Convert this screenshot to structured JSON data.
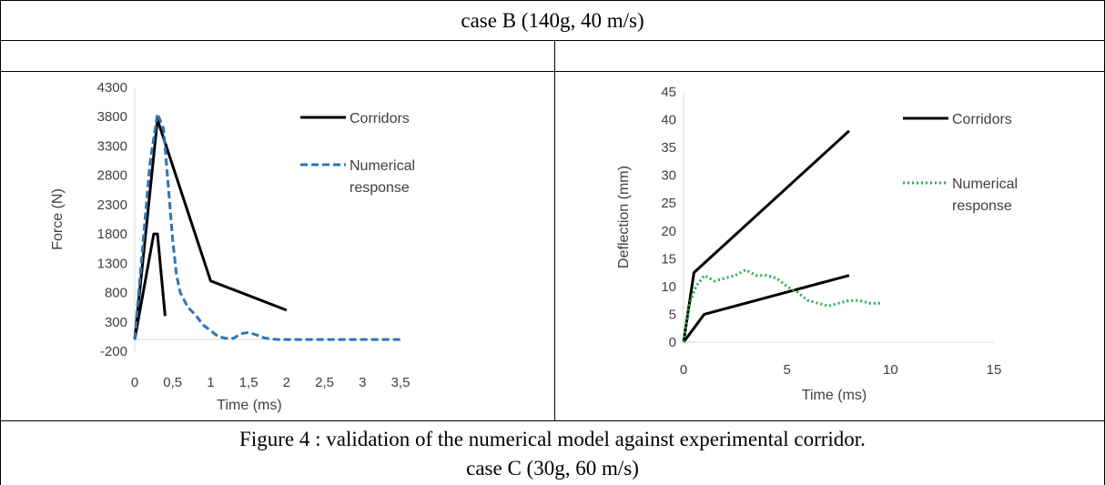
{
  "header": {
    "title": "case B (140g, 40 m/s)"
  },
  "caption": {
    "line1": "Figure 4 : validation of the numerical model  against experimental corridor.",
    "line2": "case C (30g, 60 m/s)"
  },
  "colors": {
    "corridor": "#000000",
    "numerical_left": "#2e75b6",
    "numerical_right": "#21b04b",
    "text": "#404040"
  },
  "chart_data": [
    {
      "type": "line",
      "xlabel": "Time (ms)",
      "ylabel": "Force (N)",
      "xlim": [
        0,
        3.5
      ],
      "ylim": [
        -200,
        4300
      ],
      "x_ticks": [
        "0",
        "0,5",
        "1",
        "1,5",
        "2",
        "2,5",
        "3",
        "3,5"
      ],
      "x_tick_values": [
        0,
        0.5,
        1,
        1.5,
        2,
        2.5,
        3,
        3.5
      ],
      "y_ticks": [
        "4300",
        "3800",
        "3300",
        "2800",
        "2300",
        "1800",
        "1300",
        "800",
        "300",
        "-200"
      ],
      "y_tick_values": [
        4300,
        3800,
        3300,
        2800,
        2300,
        1800,
        1300,
        800,
        300,
        -200
      ],
      "grid": false,
      "legend_position": "top-right",
      "legend": [
        {
          "lines": [
            "Corridors"
          ],
          "style": "solid"
        },
        {
          "lines": [
            "Numerical",
            "response"
          ],
          "style": "dashed"
        }
      ],
      "series": [
        {
          "style": "solid",
          "color": "#000000",
          "x": [
            0,
            0.25,
            0.3,
            0.4
          ],
          "y": [
            0,
            1800,
            1800,
            400
          ]
        },
        {
          "style": "solid",
          "color": "#000000",
          "x": [
            0,
            0.3,
            1,
            2
          ],
          "y": [
            0,
            3750,
            1000,
            500
          ]
        },
        {
          "style": "dashed",
          "color": "#2e75b6",
          "x": [
            0,
            0.1,
            0.2,
            0.3,
            0.38,
            0.45,
            0.5,
            0.55,
            0.6,
            0.7,
            0.8,
            0.9,
            1.0,
            1.1,
            1.2,
            1.3,
            1.4,
            1.5,
            1.6,
            1.7,
            1.8,
            1.9,
            2.0,
            2.5,
            3.0,
            3.5
          ],
          "y": [
            0,
            1500,
            3000,
            3850,
            3600,
            2500,
            1700,
            1100,
            800,
            550,
            420,
            250,
            150,
            50,
            20,
            20,
            100,
            120,
            80,
            30,
            10,
            0,
            0,
            0,
            0,
            0
          ]
        }
      ]
    },
    {
      "type": "line",
      "xlabel": "Time (ms)",
      "ylabel": "Deflection (mm)",
      "xlim": [
        0,
        15
      ],
      "ylim": [
        0,
        45
      ],
      "x_ticks": [
        "0",
        "5",
        "10",
        "15"
      ],
      "x_tick_values": [
        0,
        5,
        10,
        15
      ],
      "y_ticks": [
        "45",
        "40",
        "35",
        "30",
        "25",
        "20",
        "15",
        "10",
        "5",
        "0"
      ],
      "y_tick_values": [
        45,
        40,
        35,
        30,
        25,
        20,
        15,
        10,
        5,
        0
      ],
      "grid": false,
      "legend_position": "top-right",
      "legend": [
        {
          "lines": [
            "Corridors"
          ],
          "style": "solid"
        },
        {
          "lines": [
            "Numerical",
            "response"
          ],
          "style": "dotted"
        }
      ],
      "series": [
        {
          "style": "solid",
          "color": "#000000",
          "x": [
            0,
            0.5,
            8
          ],
          "y": [
            0,
            12.5,
            38
          ]
        },
        {
          "style": "solid",
          "color": "#000000",
          "x": [
            0,
            1,
            8
          ],
          "y": [
            0,
            5,
            12
          ]
        },
        {
          "style": "dotted",
          "color": "#21b04b",
          "x": [
            0,
            0.3,
            0.6,
            1.0,
            1.5,
            2.0,
            2.5,
            3.0,
            3.5,
            4.0,
            4.5,
            5.0,
            5.5,
            6.0,
            6.5,
            7.0,
            7.5,
            8.0,
            8.5,
            9.0,
            9.5
          ],
          "y": [
            0,
            7,
            10,
            12,
            11,
            11.5,
            12,
            13,
            12,
            12,
            11.5,
            10,
            9,
            7.5,
            7,
            6.5,
            7,
            7.5,
            7.5,
            7,
            7
          ]
        }
      ]
    }
  ]
}
